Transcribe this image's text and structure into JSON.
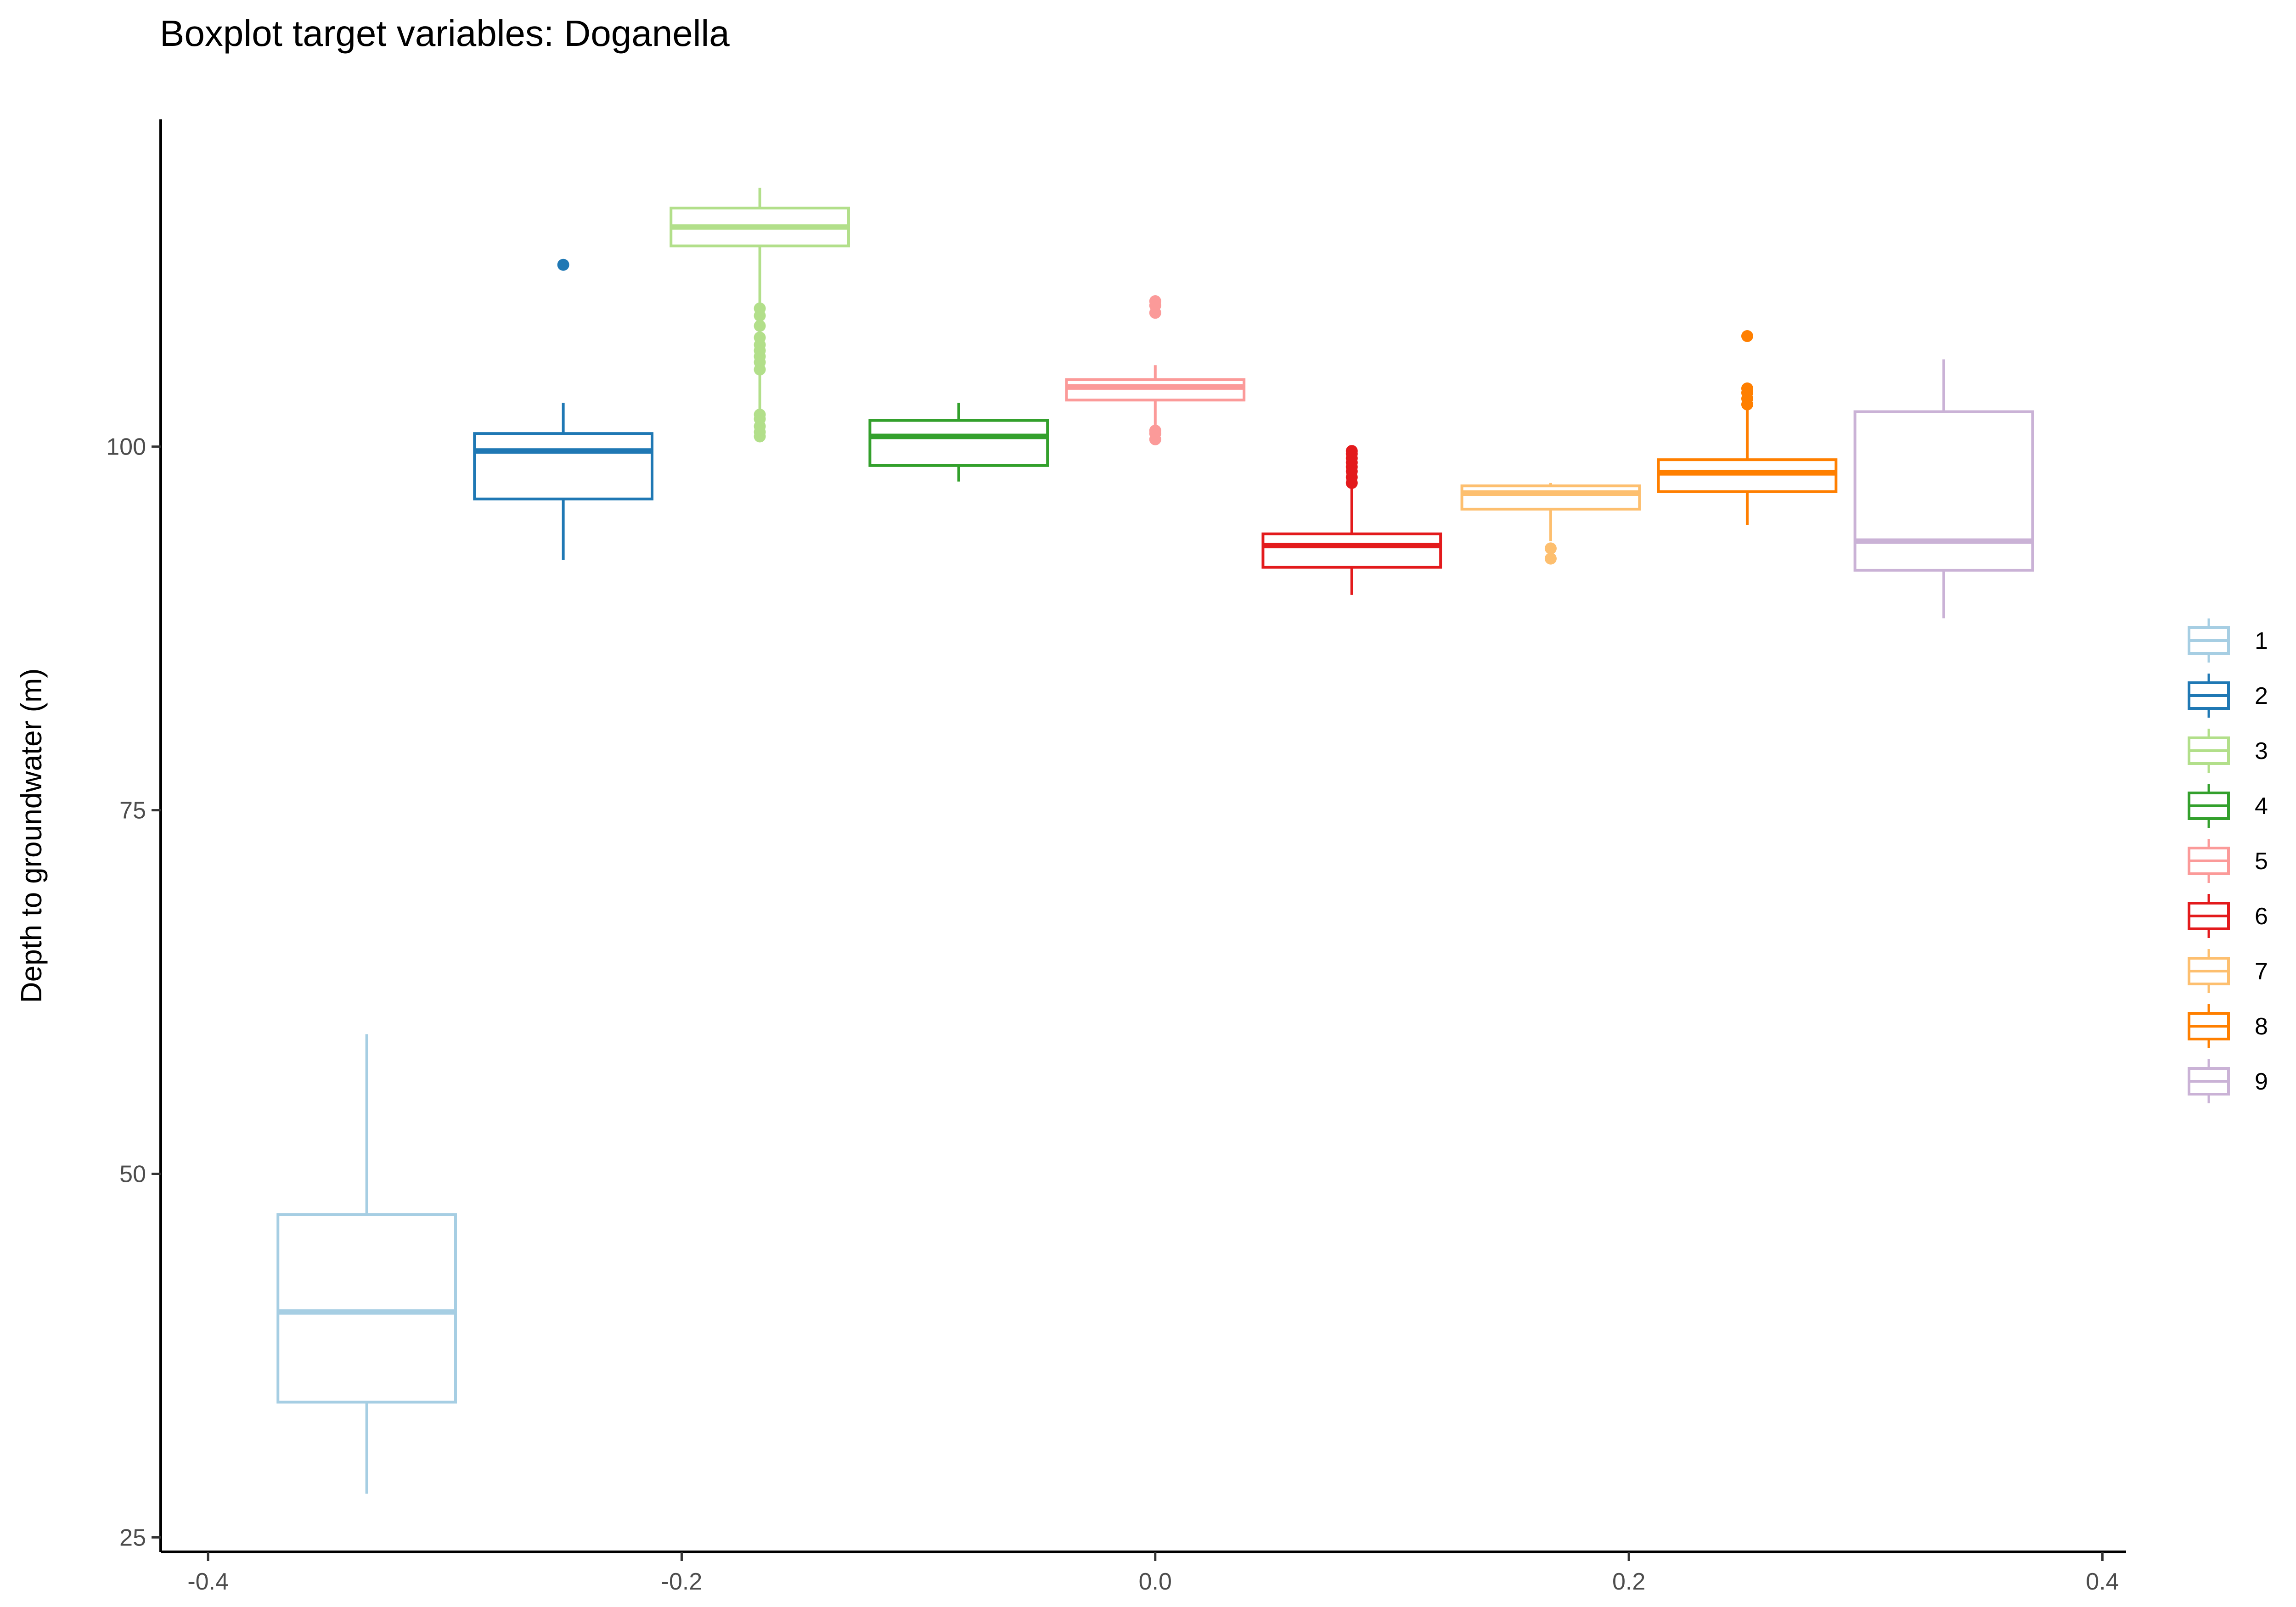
{
  "chart_data": {
    "type": "boxplot",
    "title": "Boxplot target variables: Doganella",
    "xlabel": "",
    "ylabel": "Depth to groundwater (m)",
    "xlim": [
      -0.42,
      0.41
    ],
    "ylim": [
      24,
      122.5
    ],
    "x_ticks": [
      -0.4,
      -0.2,
      0.0,
      0.2,
      0.4
    ],
    "x_tick_labels": [
      "-0.4",
      "-0.2",
      "0.0",
      "0.2",
      "0.4"
    ],
    "y_ticks": [
      25,
      50,
      75,
      100
    ],
    "y_tick_labels": [
      "25",
      "50",
      "75",
      "100"
    ],
    "grid": false,
    "legend": {
      "position": "right"
    },
    "series": [
      {
        "name": "1",
        "color": "#a6cee3",
        "x": -0.333,
        "width": 0.075,
        "whisker_low": 28.0,
        "q1": 34.3,
        "median": 40.5,
        "q3": 47.2,
        "whisker_high": 59.6,
        "outliers": []
      },
      {
        "name": "2",
        "color": "#1f78b4",
        "x": -0.25,
        "width": 0.075,
        "whisker_low": 92.2,
        "q1": 96.4,
        "median": 99.7,
        "q3": 100.9,
        "whisker_high": 103.0,
        "outliers": [
          112.5
        ]
      },
      {
        "name": "3",
        "color": "#b2df8a",
        "x": -0.167,
        "width": 0.075,
        "whisker_low": 100.7,
        "q1": 113.8,
        "median": 115.1,
        "q3": 116.4,
        "whisker_high": 117.8,
        "outliers": [
          100.7,
          101.0,
          101.4,
          101.9,
          102.2,
          105.3,
          105.8,
          106.2,
          106.6,
          107.0,
          107.5,
          108.3,
          109.0,
          109.5
        ]
      },
      {
        "name": "4",
        "color": "#33a02c",
        "x": -0.083,
        "width": 0.075,
        "whisker_low": 97.6,
        "q1": 98.7,
        "median": 100.7,
        "q3": 101.8,
        "whisker_high": 103.0,
        "outliers": []
      },
      {
        "name": "5",
        "color": "#fb9a99",
        "x": 0.0,
        "width": 0.075,
        "whisker_low": 101.5,
        "q1": 103.2,
        "median": 104.1,
        "q3": 104.6,
        "whisker_high": 105.6,
        "outliers": [
          100.5,
          100.9,
          101.1,
          109.2,
          109.7,
          110.0
        ]
      },
      {
        "name": "6",
        "color": "#e31a1c",
        "x": 0.083,
        "width": 0.075,
        "whisker_low": 89.8,
        "q1": 91.7,
        "median": 93.2,
        "q3": 94.0,
        "whisker_high": 97.2,
        "outliers": [
          97.5,
          97.9,
          98.3,
          98.6,
          98.9,
          99.2,
          99.5,
          99.7
        ]
      },
      {
        "name": "7",
        "color": "#fdbf6f",
        "x": 0.167,
        "width": 0.075,
        "whisker_low": 93.5,
        "q1": 95.7,
        "median": 96.8,
        "q3": 97.3,
        "whisker_high": 97.5,
        "outliers": [
          92.3,
          93.0
        ]
      },
      {
        "name": "8",
        "color": "#ff7f00",
        "x": 0.25,
        "width": 0.075,
        "whisker_low": 94.6,
        "q1": 96.9,
        "median": 98.2,
        "q3": 99.1,
        "whisker_high": 102.6,
        "outliers": [
          102.9,
          103.3,
          103.7,
          104.0,
          107.6
        ]
      },
      {
        "name": "9",
        "color": "#cab2d6",
        "x": 0.333,
        "width": 0.075,
        "whisker_low": 88.2,
        "q1": 91.5,
        "median": 93.5,
        "q3": 102.4,
        "whisker_high": 106.0,
        "outliers": []
      }
    ]
  }
}
